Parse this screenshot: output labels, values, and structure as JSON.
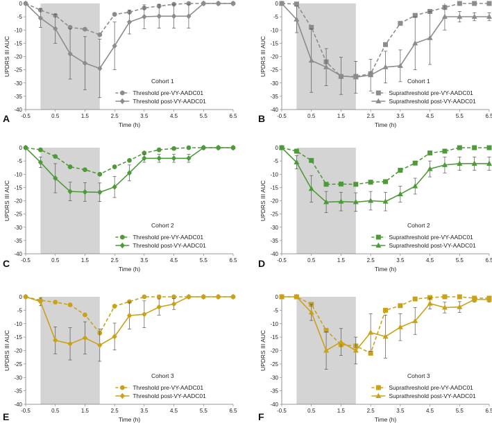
{
  "figure": {
    "panel_letters": [
      "A",
      "B",
      "C",
      "D",
      "E",
      "F"
    ]
  },
  "chart_data": [
    {
      "panel": "A",
      "type": "line",
      "title": "Cohort 1",
      "xlabel": "Time (h)",
      "ylabel": "UPDRS III AUC",
      "xlim": [
        -0.5,
        6.5
      ],
      "ylim": [
        -40,
        0
      ],
      "xticks": [
        "-0.5",
        "0.5",
        "1.5",
        "2.5",
        "3.5",
        "4.5",
        "5.5",
        "6.5"
      ],
      "yticks": [
        "0",
        "-5",
        "-10",
        "-15",
        "-20",
        "-25",
        "-30",
        "-35",
        "-40"
      ],
      "shaded_x": [
        0.0,
        2.0
      ],
      "color": "#8c8c8c",
      "marker_pre": "circle",
      "marker_post": "diamond",
      "series": [
        {
          "name": "Threshold pre-VY-AADC01",
          "dash": true,
          "x": [
            -0.5,
            0,
            0.5,
            1,
            1.5,
            2,
            2.5,
            3,
            3.5,
            4,
            4.5,
            5,
            5.5,
            6,
            6.5
          ],
          "values": [
            0,
            -2.5,
            -4.5,
            -9,
            -9.7,
            -11.8,
            -4.1,
            -3.3,
            -1.7,
            -1,
            -0.3,
            0,
            0,
            0,
            0
          ],
          "errors": [
            0,
            0,
            0,
            0,
            0,
            0,
            0,
            0,
            0,
            0,
            0,
            0,
            0,
            0,
            0
          ]
        },
        {
          "name": "Threshold post-VY-AADC01",
          "dash": false,
          "x": [
            -0.5,
            0,
            0.5,
            1,
            1.5,
            2,
            2.5,
            3,
            3.5,
            4,
            4.5,
            5,
            5.5,
            6,
            6.5
          ],
          "values": [
            0,
            -5.5,
            -9.5,
            -19,
            -22.5,
            -24.5,
            -16,
            -7,
            -5,
            -4.8,
            -4.8,
            -4.8,
            0,
            0,
            0
          ],
          "errors": [
            0,
            3.5,
            5.5,
            9.5,
            10,
            11,
            9,
            4.5,
            4.5,
            4.5,
            4.5,
            4.5,
            0,
            0,
            0
          ]
        }
      ]
    },
    {
      "panel": "B",
      "type": "line",
      "title": "Cohort 1",
      "xlabel": "Time (h)",
      "ylabel": "UPDRS III AUC",
      "xlim": [
        -0.5,
        6.5
      ],
      "ylim": [
        -40,
        0
      ],
      "xticks": [
        "-0.5",
        "0.5",
        "1.5",
        "2.5",
        "3.5",
        "4.5",
        "5.5",
        "6.5"
      ],
      "yticks": [
        "0",
        "-5",
        "-10",
        "-15",
        "-20",
        "-25",
        "-30",
        "-35",
        "-40"
      ],
      "shaded_x": [
        0.0,
        2.0
      ],
      "color": "#8c8c8c",
      "marker_pre": "square",
      "marker_post": "triangle",
      "series": [
        {
          "name": "Suprathreshold pre-VY-AADC01",
          "dash": true,
          "x": [
            -0.5,
            0,
            0.5,
            1,
            1.5,
            2,
            2.5,
            3,
            3.5,
            4,
            4.5,
            5,
            5.5,
            6,
            6.5
          ],
          "values": [
            0,
            -0.2,
            -9,
            -22,
            -27.5,
            -27.5,
            -26.5,
            -15.5,
            -7.5,
            -4.5,
            -3,
            -1.5,
            0,
            0,
            0
          ],
          "errors": [
            0,
            0,
            0,
            0,
            0,
            0,
            0,
            0,
            0,
            0,
            0,
            0,
            0,
            0,
            0
          ]
        },
        {
          "name": "Suprathreshold post-VY-AADC01",
          "dash": false,
          "x": [
            -0.5,
            0,
            0.5,
            1,
            1.5,
            2,
            2.5,
            3,
            3.5,
            4,
            4.5,
            5,
            5.5,
            6,
            6.5
          ],
          "values": [
            0,
            -6,
            -21.5,
            -24,
            -27.3,
            -27.8,
            -27,
            -24,
            -23.5,
            -15,
            -13,
            -5,
            -5,
            -5,
            -5
          ],
          "errors": [
            0,
            5,
            12,
            7,
            7,
            6,
            6,
            6,
            6,
            10,
            10,
            5,
            2,
            1.5,
            1.5
          ]
        }
      ]
    },
    {
      "panel": "C",
      "type": "line",
      "title": "Cohort 2",
      "xlabel": "Time (h)",
      "ylabel": "UPDRS III AUC",
      "xlim": [
        -0.5,
        6.5
      ],
      "ylim": [
        -40,
        0
      ],
      "xticks": [
        "-0.5",
        "0.5",
        "1.5",
        "2.5",
        "3.5",
        "4.5",
        "5.5",
        "6.5"
      ],
      "yticks": [
        "0",
        "-5",
        "-10",
        "-15",
        "-20",
        "-25",
        "-30",
        "-35",
        "-40"
      ],
      "shaded_x": [
        0.0,
        2.0
      ],
      "color": "#4e9a3a",
      "marker_pre": "circle",
      "marker_post": "diamond",
      "series": [
        {
          "name": "Threshold pre-VY-AADC01",
          "dash": true,
          "x": [
            -0.5,
            0,
            0.5,
            1,
            1.5,
            2,
            2.5,
            3,
            3.5,
            4,
            4.5,
            5,
            5.5,
            6,
            6.5
          ],
          "values": [
            0,
            -0.8,
            -3.3,
            -7.2,
            -8.3,
            -10,
            -7.2,
            -4.8,
            -2,
            -0.8,
            -0.3,
            0,
            0,
            0,
            0
          ],
          "errors": [
            0,
            0,
            0,
            0,
            0,
            0,
            0,
            0,
            0,
            0,
            0,
            0,
            0,
            0,
            0
          ]
        },
        {
          "name": "Threshold post-VY-AADC01",
          "dash": false,
          "x": [
            -0.5,
            0,
            0.5,
            1,
            1.5,
            2,
            2.5,
            3,
            3.5,
            4,
            4.5,
            5,
            5.5,
            6,
            6.5
          ],
          "values": [
            0,
            -5.5,
            -11.5,
            -16.5,
            -16.7,
            -16.8,
            -14.8,
            -9.5,
            -4,
            -4,
            -4,
            -4,
            0,
            0,
            0
          ],
          "errors": [
            0,
            2,
            5.5,
            3.5,
            3.5,
            3.5,
            4,
            3,
            1.5,
            1.5,
            1.5,
            1.5,
            0,
            0,
            0
          ]
        }
      ]
    },
    {
      "panel": "D",
      "type": "line",
      "title": "Cohort 2",
      "xlabel": "Time (h)",
      "ylabel": "UPDRS III AUC",
      "xlim": [
        -0.5,
        6.5
      ],
      "ylim": [
        -40,
        0
      ],
      "xticks": [
        "-0.5",
        "0.5",
        "1.5",
        "2.5",
        "3.5",
        "4.5",
        "5.5",
        "6.5"
      ],
      "yticks": [
        "0",
        "-5",
        "-10",
        "-15",
        "-20",
        "-25",
        "-30",
        "-35",
        "-40"
      ],
      "shaded_x": [
        0.0,
        2.0
      ],
      "color": "#4e9a3a",
      "marker_pre": "square",
      "marker_post": "triangle",
      "series": [
        {
          "name": "Suprathreshold pre-VY-AADC01",
          "dash": true,
          "x": [
            -0.5,
            0,
            0.5,
            1,
            1.5,
            2,
            2.5,
            3,
            3.5,
            4,
            4.5,
            5,
            5.5,
            6,
            6.5
          ],
          "values": [
            0,
            -1.3,
            -4.8,
            -13.8,
            -13.7,
            -13.8,
            -13,
            -12.8,
            -8.5,
            -5.8,
            -2,
            -1.3,
            0,
            0,
            0
          ],
          "errors": [
            0,
            0,
            0,
            0,
            0,
            0,
            0,
            0,
            0,
            0,
            0,
            0,
            0,
            0,
            0
          ]
        },
        {
          "name": "Suprathreshold post-VY-AADC01",
          "dash": false,
          "x": [
            -0.5,
            0,
            0.5,
            1,
            1.5,
            2,
            2.5,
            3,
            3.5,
            4,
            4.5,
            5,
            5.5,
            6,
            6.5
          ],
          "values": [
            0,
            -5.5,
            -15.5,
            -20.5,
            -20.3,
            -20.5,
            -20,
            -20.3,
            -17.5,
            -14.5,
            -8,
            -6.5,
            -6,
            -6,
            -6
          ],
          "errors": [
            0,
            2.5,
            5,
            4,
            3.5,
            3.5,
            3.5,
            3.5,
            3,
            3,
            3,
            3,
            2.5,
            2.5,
            2.5
          ]
        }
      ]
    },
    {
      "panel": "E",
      "type": "line",
      "title": "Cohort 3",
      "xlabel": "Time (h)",
      "ylabel": "UPDRS III AUC",
      "xlim": [
        -0.5,
        6.5
      ],
      "ylim": [
        -40,
        0
      ],
      "xticks": [
        "-0.5",
        "0.5",
        "1.5",
        "2.5",
        "3.5",
        "4.5",
        "5.5",
        "6.5"
      ],
      "yticks": [
        "0",
        "-5",
        "-10",
        "-15",
        "-20",
        "-25",
        "-30",
        "-35",
        "-40"
      ],
      "shaded_x": [
        0.0,
        2.0
      ],
      "color": "#c9a21a",
      "marker_pre": "circle",
      "marker_post": "diamond",
      "series": [
        {
          "name": "Threshold pre-VY-AADC01",
          "dash": true,
          "x": [
            -0.5,
            0,
            0.5,
            1,
            1.5,
            2,
            2.5,
            3,
            3.5,
            4,
            4.5,
            5,
            5.5,
            6,
            6.5
          ],
          "values": [
            0,
            -1.3,
            -2,
            -3,
            -6.7,
            -13.5,
            -3.5,
            -1.8,
            0,
            0,
            0,
            0,
            0,
            0,
            0
          ],
          "errors": [
            0,
            0,
            0,
            0,
            0,
            0,
            0,
            0,
            0,
            0,
            0,
            0,
            0,
            0,
            0
          ]
        },
        {
          "name": "Threshold post-VY-AADC01",
          "dash": false,
          "x": [
            -0.5,
            0,
            0.5,
            1,
            1.5,
            2,
            2.5,
            3,
            3.5,
            4,
            4.5,
            5,
            5.5,
            6,
            6.5
          ],
          "values": [
            0,
            -1.8,
            -16.2,
            -17.5,
            -15.3,
            -18,
            -14.8,
            -7,
            -6.5,
            -3.8,
            -2.7,
            0,
            0,
            0,
            0
          ],
          "errors": [
            0,
            1.5,
            5,
            6,
            6,
            6,
            5,
            5,
            5,
            3,
            2,
            0,
            0,
            0,
            0
          ]
        }
      ]
    },
    {
      "panel": "F",
      "type": "line",
      "title": "Cohort 3",
      "xlabel": "Time (h)",
      "ylabel": "UPDRS III AUC",
      "xlim": [
        -0.5,
        6.5
      ],
      "ylim": [
        -40,
        0
      ],
      "xticks": [
        "-0.5",
        "0.5",
        "1.5",
        "2.5",
        "3.5",
        "4.5",
        "5.5",
        "6.5"
      ],
      "yticks": [
        "0",
        "-5",
        "-10",
        "-15",
        "-20",
        "-25",
        "-30",
        "-35",
        "-40"
      ],
      "shaded_x": [
        0.0,
        2.0
      ],
      "color": "#c9a21a",
      "marker_pre": "square",
      "marker_post": "triangle",
      "series": [
        {
          "name": "Suprathreshold pre-VY-AADC01",
          "dash": true,
          "x": [
            -0.5,
            0,
            0.5,
            1,
            1.5,
            2,
            2.5,
            3,
            3.5,
            4,
            4.5,
            5,
            5.5,
            6,
            6.5
          ],
          "values": [
            0,
            0,
            -2.8,
            -12.5,
            -17.8,
            -18.3,
            -21,
            -5,
            -3.3,
            -0.8,
            -0.3,
            0,
            0,
            -0.5,
            -0.5
          ],
          "errors": [
            0,
            0,
            0,
            0,
            0,
            0,
            0,
            0,
            0,
            0,
            0,
            0,
            0,
            0,
            0
          ]
        },
        {
          "name": "Suprathreshold post-VY-AADC01",
          "dash": false,
          "x": [
            -0.5,
            0,
            0.5,
            1,
            1.5,
            2,
            2.5,
            3,
            3.5,
            4,
            4.5,
            5,
            5.5,
            6,
            6.5
          ],
          "values": [
            0,
            0,
            -5.8,
            -20,
            -16.8,
            -20,
            -13.3,
            -14.8,
            -11.3,
            -9,
            -2.5,
            -4,
            -3.8,
            -1,
            -1
          ],
          "errors": [
            0,
            0,
            3,
            7,
            5,
            5,
            7,
            8,
            5,
            5,
            2,
            2,
            2,
            1,
            1
          ]
        }
      ]
    }
  ]
}
